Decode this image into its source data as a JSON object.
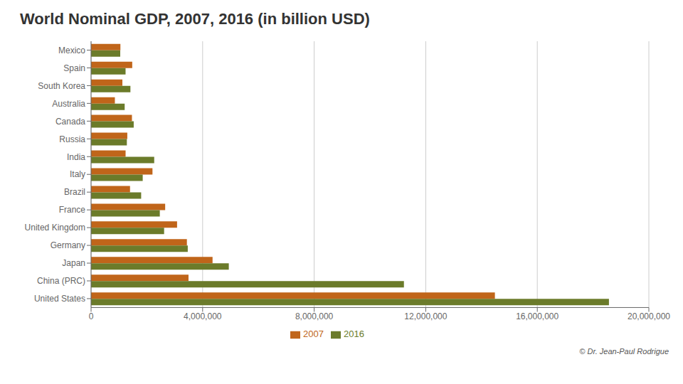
{
  "chart_data": {
    "type": "bar",
    "orientation": "horizontal",
    "title": "World Nominal GDP, 2007, 2016 (in billion USD)",
    "categories": [
      "Mexico",
      "Spain",
      "South Korea",
      "Australia",
      "Canada",
      "Russia",
      "India",
      "Italy",
      "Brazil",
      "France",
      "United Kingdom",
      "Germany",
      "Japan",
      "China (PRC)",
      "United States"
    ],
    "series": [
      {
        "name": "2007",
        "color": "#C0651A",
        "values": [
          1052000,
          1476000,
          1123000,
          854000,
          1466000,
          1299000,
          1238000,
          2202000,
          1397000,
          2657000,
          3084000,
          3436000,
          4356000,
          3494000,
          14480000
        ]
      },
      {
        "name": "2016",
        "color": "#6B7B2A",
        "values": [
          1046000,
          1237000,
          1411000,
          1205000,
          1529000,
          1283000,
          2264000,
          1852000,
          1796000,
          2465000,
          2619000,
          3467000,
          4939000,
          11218000,
          18569000
        ]
      }
    ],
    "xlim": [
      0,
      20000000
    ],
    "xticks": [
      0,
      {
        "value": 4000000,
        "label": "4,000,000"
      },
      {
        "value": 8000000,
        "label": "8,000,000"
      },
      {
        "value": 12000000,
        "label": "12,000,000"
      },
      {
        "value": 16000000,
        "label": "16,000,000"
      },
      {
        "value": 20000000,
        "label": "20,000,000"
      }
    ],
    "grid": true,
    "legend": "bottom",
    "annotations": [
      "© Dr. Jean-Paul Rodrigue"
    ]
  }
}
